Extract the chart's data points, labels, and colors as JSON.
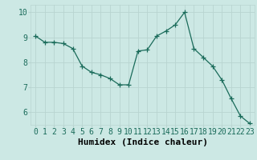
{
  "x": [
    0,
    1,
    2,
    3,
    4,
    5,
    6,
    7,
    8,
    9,
    10,
    11,
    12,
    13,
    14,
    15,
    16,
    17,
    18,
    19,
    20,
    21,
    22,
    23
  ],
  "y": [
    9.05,
    8.8,
    8.8,
    8.75,
    8.55,
    7.85,
    7.6,
    7.5,
    7.35,
    7.1,
    7.1,
    8.45,
    8.5,
    9.05,
    9.25,
    9.5,
    10.0,
    8.55,
    8.2,
    7.85,
    7.3,
    6.55,
    5.85,
    5.55
  ],
  "line_color": "#1a6b5a",
  "marker": "+",
  "marker_size": 4,
  "linewidth": 0.9,
  "xlabel": "Humidex (Indice chaleur)",
  "xlim": [
    -0.5,
    23.5
  ],
  "ylim": [
    5.5,
    10.3
  ],
  "yticks": [
    6,
    7,
    8,
    9,
    10
  ],
  "xticks": [
    0,
    1,
    2,
    3,
    4,
    5,
    6,
    7,
    8,
    9,
    10,
    11,
    12,
    13,
    14,
    15,
    16,
    17,
    18,
    19,
    20,
    21,
    22,
    23
  ],
  "bg_color": "#cce8e4",
  "grid_color": "#b8d4d0",
  "tick_fontsize": 7,
  "xlabel_fontsize": 8
}
